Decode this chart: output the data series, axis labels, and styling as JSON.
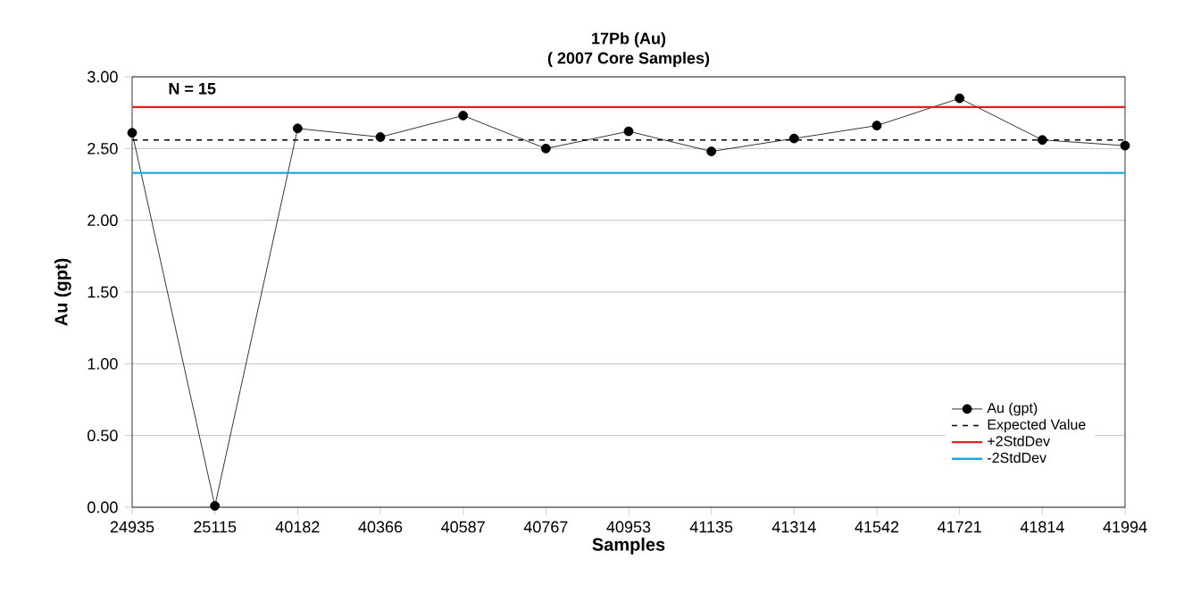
{
  "chart_data": {
    "type": "line",
    "title": "17Pb (Au)",
    "subtitle": "( 2007 Core Samples)",
    "xlabel": "Samples",
    "ylabel": "Au (gpt)",
    "categories": [
      "24935",
      "25115",
      "40182",
      "40366",
      "40587",
      "40767",
      "40953",
      "41135",
      "41314",
      "41542",
      "41721",
      "41814",
      "41994"
    ],
    "series": [
      {
        "name": "Au (gpt)",
        "color": "#000000",
        "values": [
          2.61,
          0.01,
          2.64,
          2.58,
          2.73,
          2.5,
          2.62,
          2.48,
          2.57,
          2.66,
          2.85,
          2.56,
          2.52
        ]
      }
    ],
    "ref_lines": [
      {
        "axis": "y",
        "value": 2.56,
        "label": "Expected Value",
        "color": "#000000",
        "line_style": "dashed"
      },
      {
        "axis": "y",
        "value": 2.79,
        "label": "+2StdDev",
        "color": "#e0201b",
        "line_style": "solid"
      },
      {
        "axis": "y",
        "value": 2.33,
        "label": "-2StdDev",
        "color": "#1ea8e0",
        "line_style": "solid"
      }
    ],
    "ylim": [
      0,
      3
    ],
    "yticks": [
      {
        "value": 0,
        "label": "0.00"
      },
      {
        "value": 0.5,
        "label": "0.50"
      },
      {
        "value": 1,
        "label": "1.00"
      },
      {
        "value": 1.5,
        "label": "1.50"
      },
      {
        "value": 2,
        "label": "2.00"
      },
      {
        "value": 2.5,
        "label": "2.50"
      },
      {
        "value": 3,
        "label": "3.00"
      }
    ],
    "annotations": [
      "N = 15"
    ],
    "grid": "y",
    "legend": "bottom right",
    "marker": "circle",
    "line_style": "solid"
  }
}
